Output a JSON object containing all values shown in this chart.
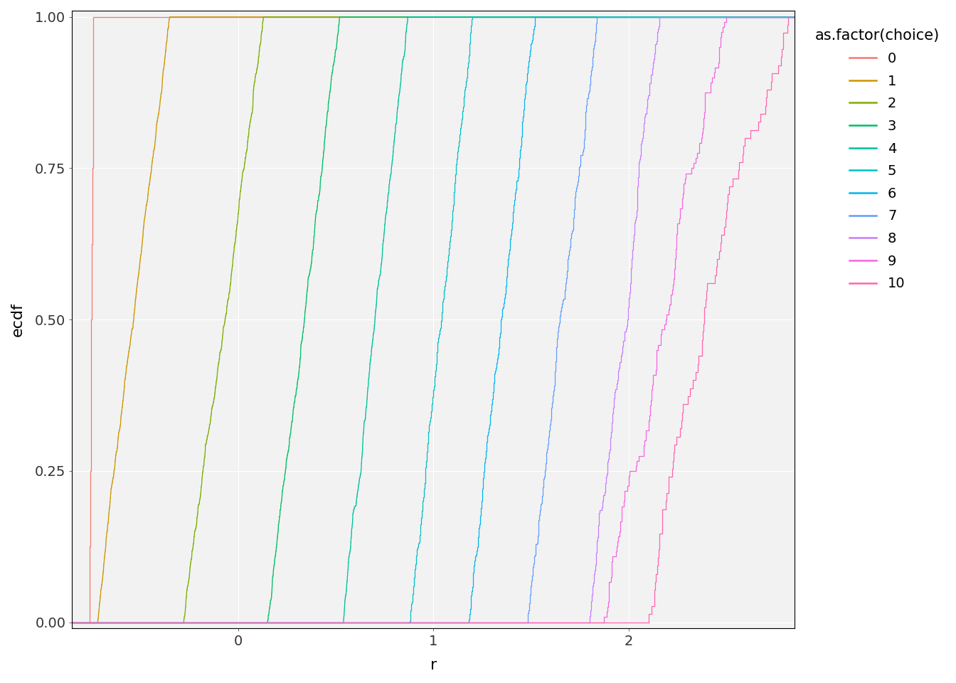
{
  "xlabel": "r",
  "ylabel": "ecdf",
  "legend_title": "as.factor(choice)",
  "xlim": [
    -0.85,
    2.85
  ],
  "ylim": [
    -0.01,
    1.01
  ],
  "xticks": [
    0,
    1,
    2
  ],
  "yticks": [
    0.0,
    0.25,
    0.5,
    0.75,
    1.0
  ],
  "ytick_labels": [
    "0.00",
    "0.25",
    "0.50",
    "0.75",
    "1.00"
  ],
  "background_color": "#ffffff",
  "panel_background": "#f2f2f2",
  "grid_color": "#ffffff",
  "colors": {
    "0": "#F8766D",
    "1": "#CD9600",
    "2": "#7CAE00",
    "3": "#00BE67",
    "4": "#00C19A",
    "5": "#00BFC4",
    "6": "#00B4F0",
    "7": "#619CFF",
    "8": "#C77CFF",
    "9": "#F564E3",
    "10": "#FF64B0"
  },
  "groups_config": {
    "0": [
      -0.76,
      -0.74,
      8
    ],
    "1": [
      -0.72,
      -0.35,
      900
    ],
    "2": [
      -0.28,
      0.13,
      700
    ],
    "3": [
      0.15,
      0.52,
      600
    ],
    "4": [
      0.54,
      0.87,
      550
    ],
    "5": [
      0.88,
      1.2,
      500
    ],
    "6": [
      1.18,
      1.52,
      450
    ],
    "7": [
      1.48,
      1.84,
      350
    ],
    "8": [
      1.8,
      2.16,
      200
    ],
    "9": [
      1.86,
      2.5,
      120
    ],
    "10": [
      2.1,
      2.82,
      75
    ]
  },
  "choice_order": [
    "0",
    "1",
    "2",
    "3",
    "4",
    "5",
    "6",
    "7",
    "8",
    "9",
    "10"
  ]
}
